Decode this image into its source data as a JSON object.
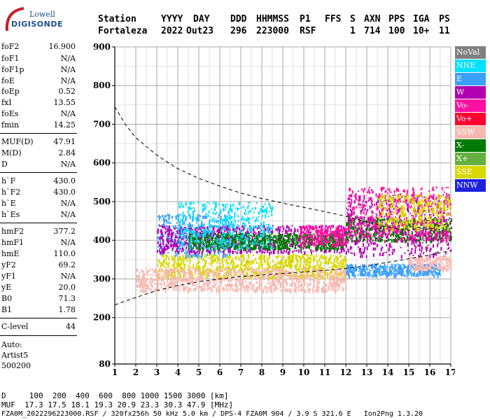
{
  "logo": {
    "top": "Lowell",
    "main": "DIGISONDE"
  },
  "header": {
    "labels": [
      "Station",
      "YYYY",
      "DAY",
      "DDD",
      "HHMMSS",
      "P1",
      "FFS",
      "S",
      "AXN",
      "PPS",
      "IGA",
      "PS"
    ],
    "values": [
      "Fortaleza",
      "2022",
      "Out23",
      "296",
      "223000",
      "RSF",
      "",
      "1",
      "714",
      "100",
      "10+",
      "11"
    ]
  },
  "params": [
    {
      "k": "foF2",
      "v": "16.900"
    },
    {
      "k": "foF1",
      "v": "N/A"
    },
    {
      "k": "foF1p",
      "v": "N/A"
    },
    {
      "k": "foE",
      "v": "N/A"
    },
    {
      "k": "foEp",
      "v": "0.52"
    },
    {
      "k": "fxI",
      "v": "13.55"
    },
    {
      "k": "foEs",
      "v": "N/A"
    },
    {
      "k": "fmin",
      "v": "14.25"
    },
    {
      "k": "MUF(D)",
      "v": "47.91"
    },
    {
      "k": "M(D)",
      "v": "2.84"
    },
    {
      "k": "D",
      "v": "N/A"
    },
    {
      "k": "h`F",
      "v": "430.0"
    },
    {
      "k": "h`F2",
      "v": "430.0"
    },
    {
      "k": "h`E",
      "v": "N/A"
    },
    {
      "k": "h`Es",
      "v": "N/A"
    },
    {
      "k": "hmF2",
      "v": "377.2"
    },
    {
      "k": "hmF1",
      "v": "N/A"
    },
    {
      "k": "hmE",
      "v": "110.0"
    },
    {
      "k": "yF2",
      "v": "69.2"
    },
    {
      "k": "yF1",
      "v": "N/A"
    },
    {
      "k": "yE",
      "v": "20.0"
    },
    {
      "k": "B0",
      "v": "71.3"
    },
    {
      "k": "B1",
      "v": "1.78"
    },
    {
      "k": "C-level",
      "v": "44"
    }
  ],
  "autoscale": {
    "line1": "Auto:",
    "line2": "Artist5",
    "line3": "500200"
  },
  "legend": [
    {
      "label": "NoVal",
      "color": "#808080"
    },
    {
      "label": "NNE",
      "color": "#00e0ff"
    },
    {
      "label": "E",
      "color": "#3aa0ff"
    },
    {
      "label": "W",
      "color": "#b000b0"
    },
    {
      "label": "Vo-",
      "color": "#ff10a0"
    },
    {
      "label": "Vo+",
      "color": "#ff0030"
    },
    {
      "label": "SSW",
      "color": "#f8b8b0"
    },
    {
      "label": "X-",
      "color": "#007a00"
    },
    {
      "label": "X+",
      "color": "#66b040"
    },
    {
      "label": "SSE",
      "color": "#d8d800"
    },
    {
      "label": "NNW",
      "color": "#2020e0"
    }
  ],
  "footer": {
    "line1": "D     100  200  400  600  800 1000 1500 3000 [km]",
    "line2": "MUF  17.3 17.5 18.1 19.3 20.9 23.3 30.3 47.9 [MHz]",
    "line3": "FZA0M_2022296223000.RSF / 320fx256h 50 kHz 5.0 km / DPS-4 FZA0M 904 / 3.9 S 321.6 E   Ion2Png 1.3.20"
  },
  "chart_data": {
    "type": "scatter",
    "title": "",
    "xlabel": "",
    "ylabel": "",
    "xlim": [
      1,
      17
    ],
    "ylim": [
      80,
      900
    ],
    "xticks": [
      1,
      2,
      3,
      4,
      5,
      6,
      7,
      8,
      9,
      10,
      11,
      12,
      13,
      14,
      15,
      16,
      17
    ],
    "yticks": [
      80,
      200,
      300,
      400,
      500,
      600,
      700,
      800,
      900
    ],
    "grid": true,
    "dashed_curves": [
      {
        "name": "upper",
        "points": [
          [
            1,
            745
          ],
          [
            1.5,
            700
          ],
          [
            2,
            665
          ],
          [
            3,
            620
          ],
          [
            4,
            585
          ],
          [
            5,
            560
          ],
          [
            6,
            540
          ],
          [
            7,
            522
          ],
          [
            8,
            508
          ],
          [
            9,
            496
          ],
          [
            10,
            485
          ],
          [
            11,
            474
          ],
          [
            12,
            462
          ],
          [
            13,
            448
          ],
          [
            14,
            434
          ],
          [
            15,
            425
          ],
          [
            15.5,
            432
          ],
          [
            16,
            428
          ],
          [
            16.5,
            438
          ],
          [
            17,
            445
          ]
        ]
      },
      {
        "name": "lower",
        "points": [
          [
            1,
            233
          ],
          [
            2,
            252
          ],
          [
            3,
            270
          ],
          [
            4,
            283
          ],
          [
            5,
            293
          ],
          [
            6,
            300
          ],
          [
            7,
            306
          ],
          [
            8,
            310
          ],
          [
            9,
            314
          ],
          [
            10,
            318
          ],
          [
            11,
            322
          ],
          [
            12,
            327
          ],
          [
            13,
            334
          ],
          [
            14,
            343
          ],
          [
            15,
            352
          ],
          [
            16,
            362
          ],
          [
            17,
            373
          ]
        ]
      }
    ],
    "echo_clusters": [
      {
        "series": "SSE",
        "x": [
          3.0,
          12.0
        ],
        "y": [
          305,
          365
        ]
      },
      {
        "series": "SSW",
        "x": [
          2.0,
          12.0
        ],
        "y": [
          270,
          330
        ]
      },
      {
        "series": "E",
        "x": [
          3.0,
          6.5
        ],
        "y": [
          360,
          470
        ]
      },
      {
        "series": "W",
        "x": [
          3.0,
          12.0
        ],
        "y": [
          370,
          440
        ]
      },
      {
        "series": "X-",
        "x": [
          4.5,
          12.0
        ],
        "y": [
          380,
          420
        ]
      },
      {
        "series": "NNE",
        "x": [
          4.0,
          8.5
        ],
        "y": [
          380,
          500
        ]
      },
      {
        "series": "Vo-",
        "x": [
          9.8,
          12.0
        ],
        "y": [
          390,
          440
        ]
      },
      {
        "series": "X-",
        "x": [
          12.0,
          17.0
        ],
        "y": [
          400,
          460
        ]
      },
      {
        "series": "W",
        "x": [
          12.0,
          17.0
        ],
        "y": [
          360,
          520
        ]
      },
      {
        "series": "Vo-",
        "x": [
          12.0,
          17.0
        ],
        "y": [
          400,
          540
        ]
      },
      {
        "series": "E",
        "x": [
          12.0,
          16.5
        ],
        "y": [
          310,
          340
        ]
      },
      {
        "series": "SSW",
        "x": [
          15.0,
          17.0
        ],
        "y": [
          325,
          360
        ]
      },
      {
        "series": "SSE",
        "x": [
          13.5,
          17.0
        ],
        "y": [
          430,
          520
        ]
      }
    ]
  }
}
